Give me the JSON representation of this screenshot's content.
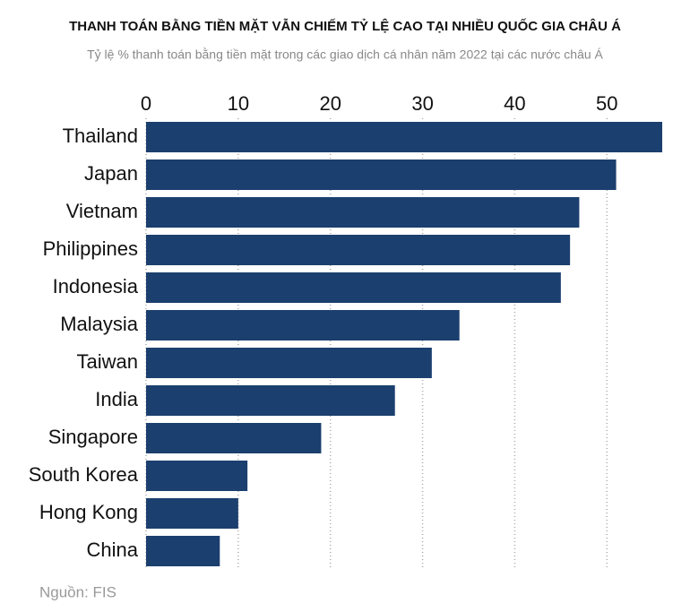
{
  "chart_data": {
    "type": "bar",
    "orientation": "horizontal",
    "title": "THANH TOÁN BẰNG TIỀN MẶT VẪN CHIẾM TỶ LỆ CAO TẠI NHIỀU QUỐC GIA CHÂU Á",
    "subtitle": "Tỷ lệ % thanh toán bằng tiền mặt trong các giao dịch cá nhân năm 2022 tại các nước châu Á",
    "categories": [
      "Thailand",
      "Japan",
      "Vietnam",
      "Philippines",
      "Indonesia",
      "Malaysia",
      "Taiwan",
      "India",
      "Singapore",
      "South Korea",
      "Hong Kong",
      "China"
    ],
    "values": [
      56,
      51,
      47,
      46,
      45,
      34,
      31,
      27,
      19,
      11,
      10,
      8
    ],
    "color": "#1b3f6e",
    "xlim": [
      0,
      56
    ],
    "xticks": [
      0,
      10,
      20,
      30,
      40,
      50
    ],
    "grid": true,
    "source": "Nguồn: FIS"
  }
}
